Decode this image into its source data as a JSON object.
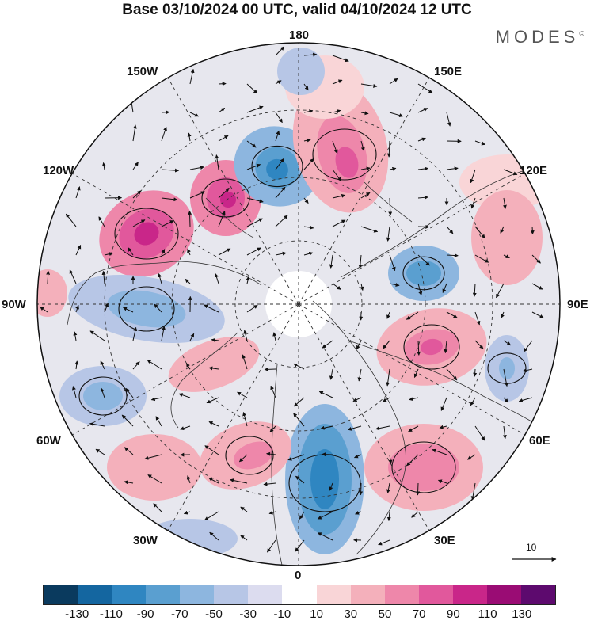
{
  "title": "Base 03/10/2024 00 UTC, valid 04/10/2024 12 UTC",
  "logo": {
    "text": "MODES",
    "mark": "©"
  },
  "longitude_labels": {
    "top": "180",
    "bottom": "0",
    "left": "90W",
    "right": "90E",
    "upper_left_1": "150W",
    "upper_left_2": "120W",
    "upper_right_1": "150E",
    "upper_right_2": "120E",
    "lower_left_1": "60W",
    "lower_left_2": "30W",
    "lower_right_1": "60E",
    "lower_right_2": "30E"
  },
  "reference_vector": {
    "label": "10"
  },
  "colorbar": {
    "ticks": [
      "-130",
      "-110",
      "-90",
      "-70",
      "-50",
      "-30",
      "-10",
      "10",
      "30",
      "50",
      "70",
      "90",
      "110",
      "130"
    ],
    "colors": [
      "#0a3a5e",
      "#1466a0",
      "#2f86c1",
      "#5a9fd0",
      "#8db6df",
      "#b7c6e6",
      "#dcdcef",
      "#ffffff",
      "#f9d5d7",
      "#f4b0bb",
      "#ee87aa",
      "#e1589c",
      "#c92689",
      "#9a0c74",
      "#5d0a6e"
    ]
  }
}
